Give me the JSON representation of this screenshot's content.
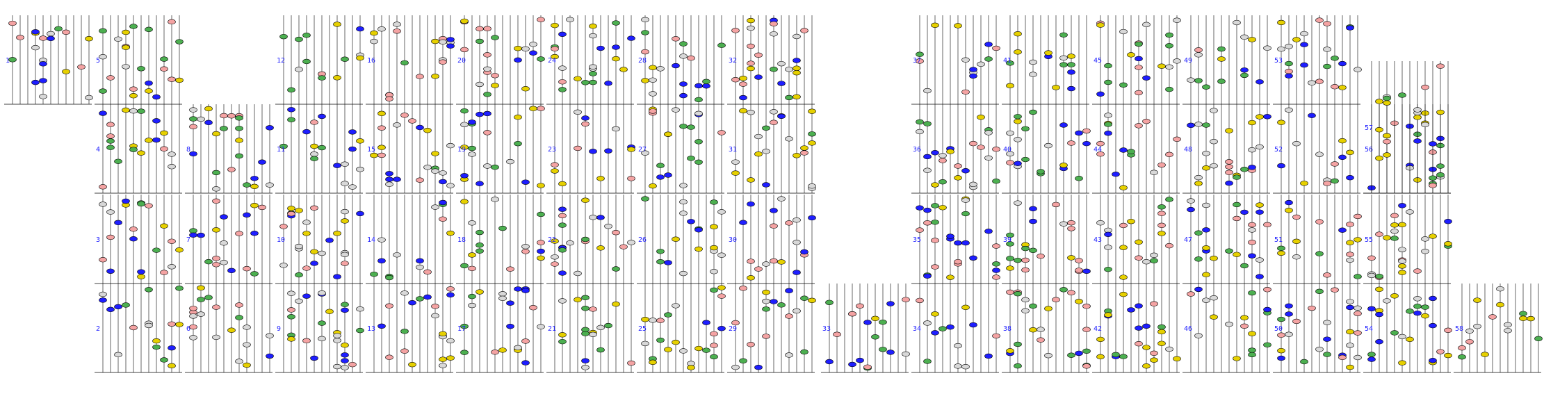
{
  "colors": {
    "background": "#ffffff",
    "line": "#000000",
    "label": "#1e1eff",
    "note_gray": "#d8d8d8",
    "note_green": "#4caf50",
    "note_red": "#f4a3a3",
    "note_blue": "#1e1eff",
    "note_yellow": "#e6d000"
  },
  "panels": [
    {
      "label": "1"
    },
    {
      "label": "2"
    },
    {
      "label": "3"
    },
    {
      "label": "4"
    },
    {
      "label": "5"
    },
    {
      "label": "6"
    },
    {
      "label": "7"
    },
    {
      "label": "8"
    },
    {
      "label": "9"
    },
    {
      "label": "10"
    },
    {
      "label": "11"
    },
    {
      "label": "12"
    },
    {
      "label": "13"
    },
    {
      "label": "14"
    },
    {
      "label": "15"
    },
    {
      "label": "16"
    },
    {
      "label": "17"
    },
    {
      "label": "18"
    },
    {
      "label": "19"
    },
    {
      "label": "20"
    },
    {
      "label": "21"
    },
    {
      "label": "22"
    },
    {
      "label": "23"
    },
    {
      "label": "24"
    },
    {
      "label": "25"
    },
    {
      "label": "26"
    },
    {
      "label": "27"
    },
    {
      "label": "28"
    },
    {
      "label": "29"
    },
    {
      "label": "30"
    },
    {
      "label": "31"
    },
    {
      "label": "32"
    },
    {
      "label": "33"
    },
    {
      "label": "34"
    },
    {
      "label": "35"
    },
    {
      "label": "36"
    },
    {
      "label": "37"
    },
    {
      "label": "38"
    },
    {
      "label": "39"
    },
    {
      "label": "40"
    },
    {
      "label": "41"
    },
    {
      "label": "42"
    },
    {
      "label": "43"
    },
    {
      "label": "44"
    },
    {
      "label": "45"
    },
    {
      "label": "46"
    },
    {
      "label": "47"
    },
    {
      "label": "48"
    },
    {
      "label": "49"
    },
    {
      "label": "50"
    },
    {
      "label": "51"
    },
    {
      "label": "52"
    },
    {
      "label": "53"
    },
    {
      "label": "54"
    },
    {
      "label": "55"
    },
    {
      "label": "56"
    },
    {
      "label": "57"
    },
    {
      "label": "58"
    }
  ]
}
